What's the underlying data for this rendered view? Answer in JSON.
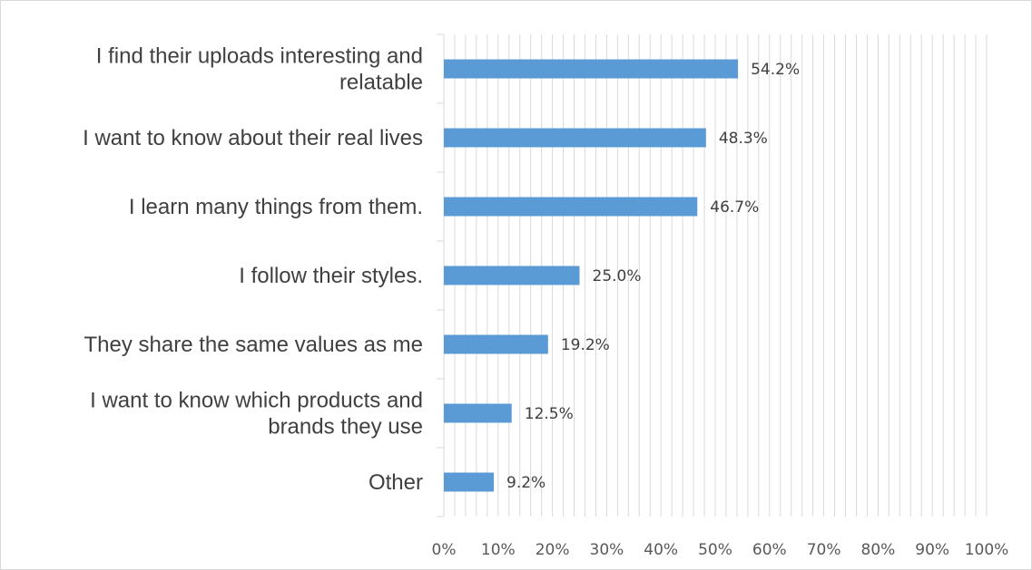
{
  "chart_data": {
    "type": "bar",
    "orientation": "horizontal",
    "title": "",
    "xlabel": "",
    "ylabel": "",
    "categories": [
      "I find their uploads interesting and relatable",
      "I want to know about their real lives",
      "I learn many things from them.",
      "I follow their styles.",
      "They share the same values as me",
      "I want to know which products and brands they use",
      "Other"
    ],
    "category_lines": [
      [
        "I find their uploads interesting and",
        "relatable"
      ],
      [
        "I want to know about their real lives"
      ],
      [
        "I learn many things from them."
      ],
      [
        "I follow their styles."
      ],
      [
        "They share the same values as me"
      ],
      [
        "I want to know which products and",
        "brands they use"
      ],
      [
        "Other"
      ]
    ],
    "values": [
      54.2,
      48.3,
      46.7,
      25.0,
      19.2,
      12.5,
      9.2
    ],
    "data_labels": [
      "54.2%",
      "48.3%",
      "46.7%",
      "25.0%",
      "19.2%",
      "12.5%",
      "9.2%"
    ],
    "xlim": [
      0,
      100
    ],
    "x_ticks": [
      0,
      10,
      20,
      30,
      40,
      50,
      60,
      70,
      80,
      90,
      100
    ],
    "x_tick_labels": [
      "0%",
      "10%",
      "20%",
      "30%",
      "40%",
      "50%",
      "60%",
      "70%",
      "80%",
      "90%",
      "100%"
    ],
    "minor_step": 2,
    "grid": true,
    "legend": "none",
    "colors": {
      "bar": "#5b9bd5",
      "gridline": "#d9d9d9",
      "axis": "#d9d9d9",
      "text": "#404040"
    }
  }
}
